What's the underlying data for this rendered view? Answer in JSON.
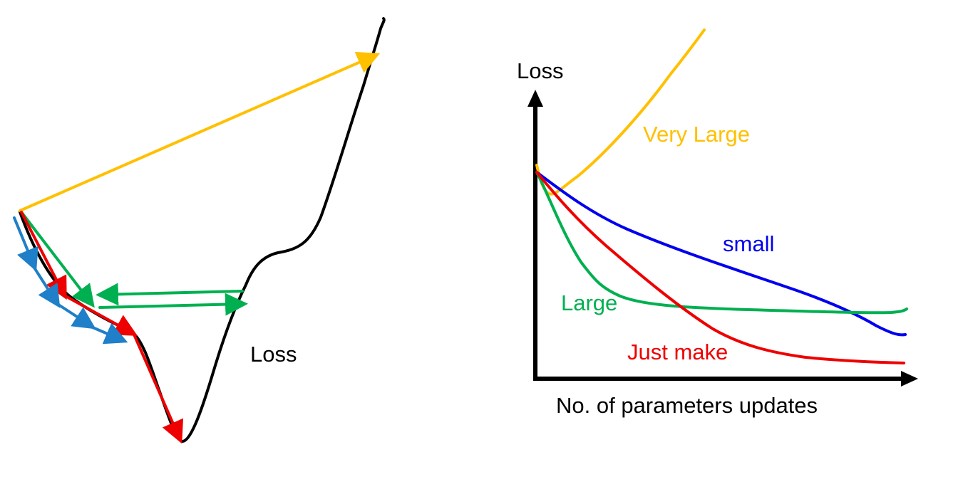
{
  "colors": {
    "black": "#000000",
    "very_large": "#FFC000",
    "small": "#0000EE",
    "large": "#00B050",
    "just_make": "#EE0000",
    "blue_steps": "#1F7FC8"
  },
  "left_diagram": {
    "curve_label": "Loss",
    "step_sizes": [
      "blue_steps",
      "red_steps",
      "green_steps",
      "yellow_step"
    ]
  },
  "right_chart": {
    "y_axis_label": "Loss",
    "x_axis_label": "No. of parameters updates",
    "series": [
      {
        "key": "very_large",
        "name": "Very Large",
        "trend": "increasing"
      },
      {
        "key": "small",
        "name": "small",
        "trend": "slow decrease"
      },
      {
        "key": "large",
        "name": "Large",
        "trend": "fast decrease then plateau high"
      },
      {
        "key": "just_make",
        "name": "Just make",
        "trend": "decrease to lowest"
      }
    ]
  }
}
